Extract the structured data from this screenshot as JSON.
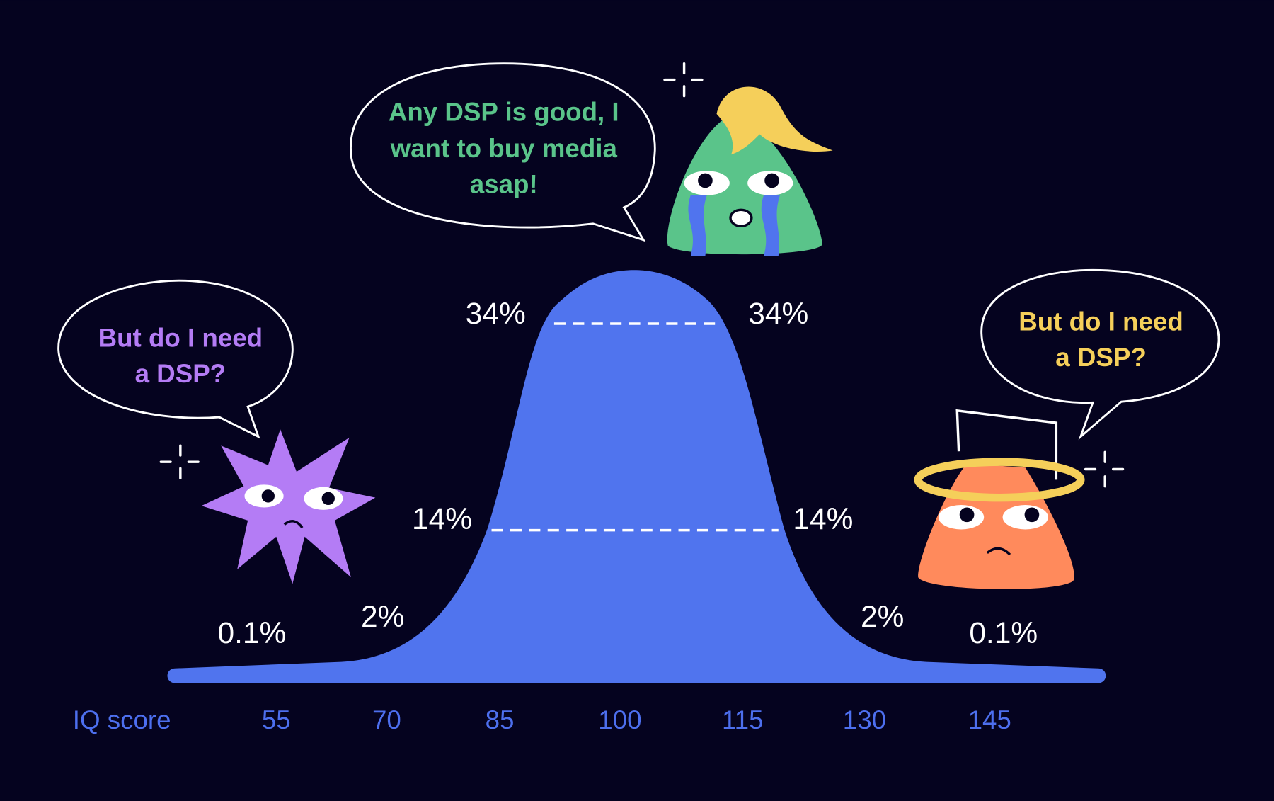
{
  "bubbles": [
    {
      "lines": [
        "But do I need",
        "a DSP?"
      ]
    },
    {
      "lines": [
        "Any DSP is good, I",
        "want to buy media",
        "asap!"
      ]
    },
    {
      "lines": [
        "But do I need",
        "a DSP?"
      ]
    }
  ],
  "percent_labels": [
    "0.1%",
    "2%",
    "14%",
    "34%",
    "34%",
    "14%",
    "2%",
    "0.1%"
  ],
  "axis": {
    "label": "IQ score",
    "ticks": [
      "55",
      "70",
      "85",
      "100",
      "115",
      "130",
      "145"
    ]
  }
}
